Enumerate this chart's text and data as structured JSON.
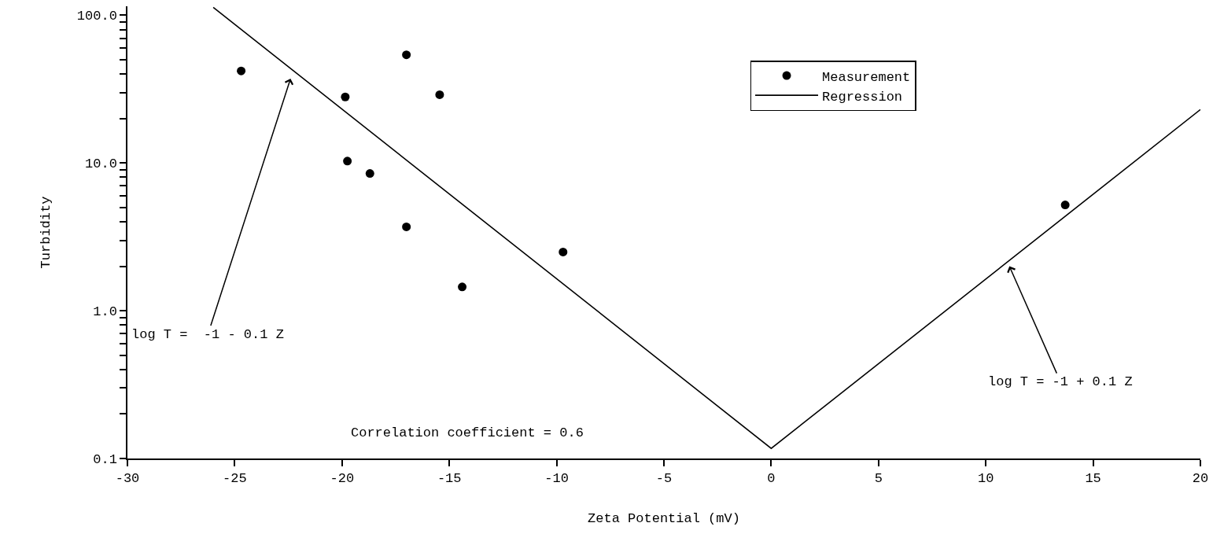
{
  "chart_data": {
    "type": "scatter",
    "xlabel": "Zeta Potential (mV)",
    "ylabel": "Turbidity",
    "log": "y",
    "series": [
      {
        "name": "Measurement",
        "color": "#000000",
        "marker": "circle",
        "x": [
          -24.7,
          -19.85,
          -17.0,
          -15.45,
          -19.75,
          -18.7,
          -17.0,
          -14.4,
          -9.7,
          13.7
        ],
        "values": [
          42,
          28,
          54,
          29,
          10.3,
          8.5,
          3.7,
          1.45,
          2.5,
          5.2
        ]
      },
      {
        "name": "Regression",
        "type": "line",
        "color": "#000000",
        "marker": "none",
        "line_style": "solid",
        "x": [
          -26,
          0,
          20
        ],
        "values": [
          113,
          0.117,
          23
        ]
      }
    ],
    "xlim": [
      -30,
      20
    ],
    "xticks": [
      -30,
      -25,
      -20,
      -15,
      -10,
      -5,
      0,
      5,
      10,
      15,
      20
    ],
    "ylim": [
      0.1,
      115
    ],
    "yticks": [
      {
        "value": 0.1,
        "label": "0.1"
      },
      {
        "value": 0.2,
        "label": null
      },
      {
        "value": 0.3,
        "label": null
      },
      {
        "value": 0.4,
        "label": null
      },
      {
        "value": 0.5,
        "label": null
      },
      {
        "value": 0.6,
        "label": null
      },
      {
        "value": 0.7,
        "label": null
      },
      {
        "value": 0.8,
        "label": null
      },
      {
        "value": 0.9,
        "label": null
      },
      {
        "value": 1,
        "label": "1.0"
      },
      {
        "value": 2,
        "label": null
      },
      {
        "value": 3,
        "label": null
      },
      {
        "value": 4,
        "label": null
      },
      {
        "value": 5,
        "label": null
      },
      {
        "value": 6,
        "label": null
      },
      {
        "value": 7,
        "label": null
      },
      {
        "value": 8,
        "label": null
      },
      {
        "value": 9,
        "label": null
      },
      {
        "value": 10,
        "label": "10.0"
      },
      {
        "value": 20,
        "label": null
      },
      {
        "value": 30,
        "label": null
      },
      {
        "value": 40,
        "label": null
      },
      {
        "value": 50,
        "label": null
      },
      {
        "value": 60,
        "label": null
      },
      {
        "value": 70,
        "label": null
      },
      {
        "value": 80,
        "label": null
      },
      {
        "value": 90,
        "label": null
      },
      {
        "value": 100,
        "label": "100.0"
      }
    ],
    "legend": "top right",
    "annotations": [
      "log T =  -1 - 0.1 Z",
      "log T = -1 + 0.1 Z",
      "Correlation coefficient = 0.6"
    ]
  }
}
